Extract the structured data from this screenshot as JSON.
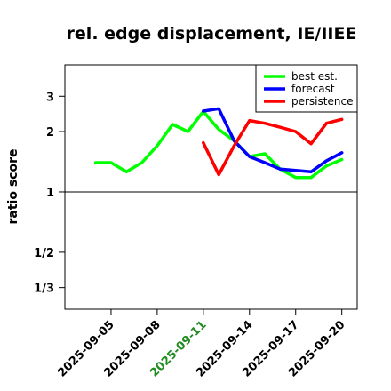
{
  "chart_data": {
    "type": "line",
    "title": "rel. edge displacement, IE/IIEE",
    "xlabel": "",
    "ylabel": "ratio score",
    "y_scale": "log",
    "ylim": [
      0.26,
      4.3
    ],
    "xlim": [
      "2025-09-02",
      "2025-09-21"
    ],
    "y_ticks": [
      {
        "value": 3,
        "label": "3"
      },
      {
        "value": 2,
        "label": "2"
      },
      {
        "value": 1,
        "label": "1"
      },
      {
        "value": 0.5,
        "label": "1/2"
      },
      {
        "value": 0.3333,
        "label": "1/3"
      }
    ],
    "x_ticks": [
      {
        "date": "2025-09-05",
        "label": "2025-09-05",
        "color": "#000000"
      },
      {
        "date": "2025-09-08",
        "label": "2025-09-08",
        "color": "#000000"
      },
      {
        "date": "2025-09-11",
        "label": "2025-09-11",
        "color": "#228B22"
      },
      {
        "date": "2025-09-14",
        "label": "2025-09-14",
        "color": "#000000"
      },
      {
        "date": "2025-09-17",
        "label": "2025-09-17",
        "color": "#000000"
      },
      {
        "date": "2025-09-20",
        "label": "2025-09-20",
        "color": "#000000"
      }
    ],
    "reference_line": 1,
    "grid": false,
    "legend_position": "top-right",
    "series": [
      {
        "name": "best est.",
        "color": "#00ff00",
        "x": [
          "2025-09-04",
          "2025-09-05",
          "2025-09-06",
          "2025-09-07",
          "2025-09-08",
          "2025-09-09",
          "2025-09-10",
          "2025-09-11",
          "2025-09-12",
          "2025-09-13",
          "2025-09-14",
          "2025-09-15",
          "2025-09-16",
          "2025-09-17",
          "2025-09-18",
          "2025-09-19",
          "2025-09-20"
        ],
        "values": [
          1.4,
          1.4,
          1.26,
          1.4,
          1.7,
          2.17,
          2.0,
          2.52,
          2.05,
          1.8,
          1.5,
          1.55,
          1.3,
          1.18,
          1.18,
          1.35,
          1.45
        ]
      },
      {
        "name": "forecast",
        "color": "#0000ff",
        "x": [
          "2025-09-11",
          "2025-09-12",
          "2025-09-13",
          "2025-09-14",
          "2025-09-15",
          "2025-09-16",
          "2025-09-17",
          "2025-09-18",
          "2025-09-19",
          "2025-09-20"
        ],
        "values": [
          2.53,
          2.6,
          1.8,
          1.5,
          1.4,
          1.3,
          1.28,
          1.26,
          1.43,
          1.57
        ]
      },
      {
        "name": "persistence",
        "color": "#ff0000",
        "x": [
          "2025-09-11",
          "2025-09-12",
          "2025-09-13",
          "2025-09-14",
          "2025-09-15",
          "2025-09-16",
          "2025-09-17",
          "2025-09-18",
          "2025-09-19",
          "2025-09-20"
        ],
        "values": [
          1.76,
          1.22,
          1.7,
          2.27,
          2.2,
          2.1,
          2.0,
          1.74,
          2.2,
          2.3
        ]
      }
    ]
  }
}
